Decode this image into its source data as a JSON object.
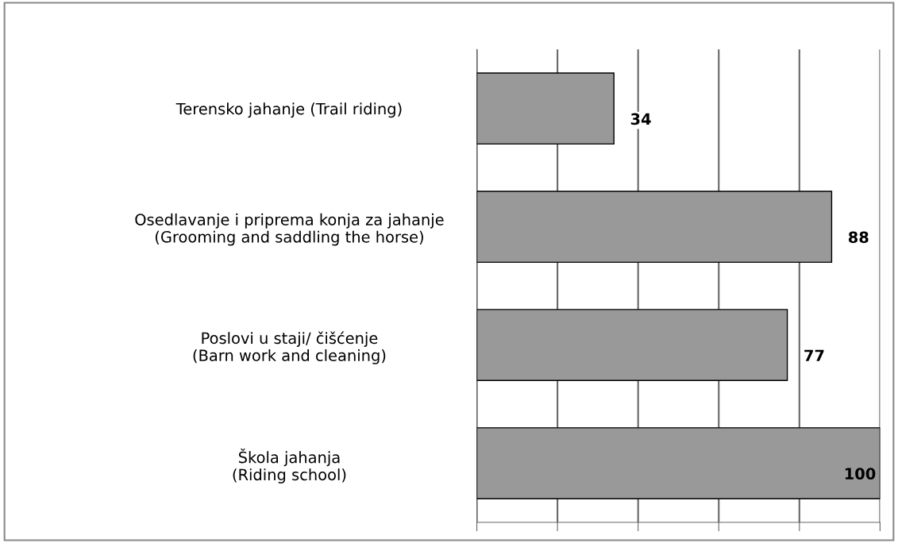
{
  "chart_data": {
    "type": "bar",
    "orientation": "horizontal",
    "categories": [
      "Terensko jahanje (Trail riding)",
      "Osedlavanje i priprema konja za jahanje\n(Grooming and saddling the horse)",
      "Poslovi u staji/ čišćenje\n(Barn work and cleaning)",
      "Škola jahanja\n(Riding school)"
    ],
    "values": [
      34,
      88,
      77,
      100
    ],
    "color": "#999999",
    "xlim": [
      0,
      100
    ],
    "xticks": [
      {
        "value": 0,
        "label": null
      },
      {
        "value": 20,
        "label": null
      },
      {
        "value": 40,
        "label": null
      },
      {
        "value": 60,
        "label": null
      },
      {
        "value": 80,
        "label": null
      },
      {
        "value": 100,
        "label": null
      }
    ],
    "grid": "x",
    "data_labels": true,
    "legend": false
  }
}
